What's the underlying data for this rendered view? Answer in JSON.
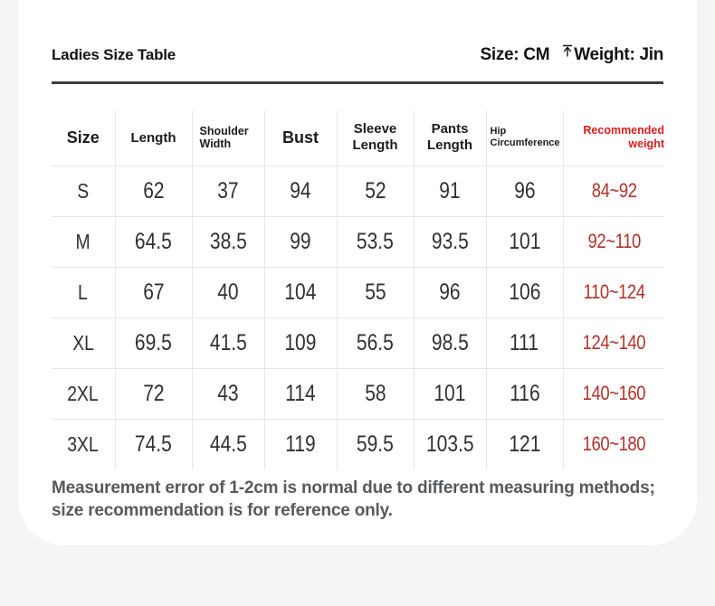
{
  "header": {
    "title": "Ladies Size Table",
    "size_unit": "Size: CM",
    "weight_unit": "Weight: Jin",
    "arrow_icon": "up-arrow-to-bar"
  },
  "table": {
    "columns": [
      "Size",
      "Length",
      "Shoulder Width",
      "Bust",
      "Sleeve Length",
      "Pants Length",
      "Hip Circumference",
      "Recommended weight"
    ],
    "rows": [
      {
        "size": "S",
        "values": [
          "62",
          "37",
          "94",
          "52",
          "91",
          "96",
          "84~92"
        ]
      },
      {
        "size": "M",
        "values": [
          "64.5",
          "38.5",
          "99",
          "53.5",
          "93.5",
          "101",
          "92~110"
        ]
      },
      {
        "size": "L",
        "values": [
          "67",
          "40",
          "104",
          "55",
          "96",
          "106",
          "110~124"
        ]
      },
      {
        "size": "XL",
        "values": [
          "69.5",
          "41.5",
          "109",
          "56.5",
          "98.5",
          "111",
          "124~140"
        ]
      },
      {
        "size": "2XL",
        "values": [
          "72",
          "43",
          "114",
          "58",
          "101",
          "116",
          "140~160"
        ]
      },
      {
        "size": "3XL",
        "values": [
          "74.5",
          "44.5",
          "119",
          "59.5",
          "103.5",
          "121",
          "160~180"
        ]
      }
    ]
  },
  "footnote": "Measurement error of 1-2cm is normal due to different measuring methods; size recommendation is for reference only.",
  "colors": {
    "background": "#f5f5f6",
    "card": "#ffffff",
    "divider": "#3f3f3f",
    "grid_line": "#e6e6e6",
    "text": "#303030",
    "accent_red": "#e01c1c",
    "value_red": "#b23229"
  }
}
